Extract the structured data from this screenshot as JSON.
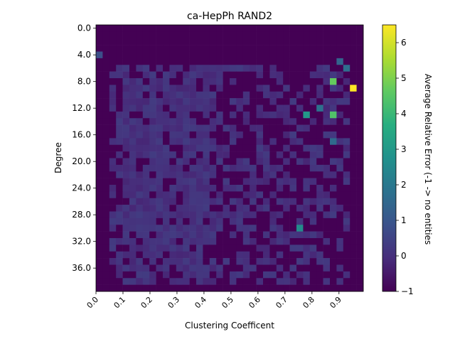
{
  "chart_data": {
    "type": "heatmap",
    "title": "ca-HepPh RAND2",
    "xlabel": "Clustering Coefficent",
    "ylabel": "Degree",
    "x_range": [
      0.0,
      1.0
    ],
    "y_range": [
      0,
      40
    ],
    "x_ticks": [
      0.0,
      0.1,
      0.2,
      0.3,
      0.4,
      0.5,
      0.6,
      0.7,
      0.8,
      0.9
    ],
    "x_tick_labels": [
      "0.0",
      "0.1",
      "0.2",
      "0.3",
      "0.4",
      "0.5",
      "0.6",
      "0.7",
      "0.8",
      "0.9"
    ],
    "y_ticks": [
      0,
      4,
      8,
      12,
      16,
      20,
      24,
      28,
      32,
      36
    ],
    "y_tick_labels": [
      "0.0",
      "4.0",
      "8.0",
      "12.0",
      "16.0",
      "20.0",
      "24.0",
      "28.0",
      "32.0",
      "36.0"
    ],
    "grid": false,
    "colormap": "viridis",
    "colorbar": {
      "label": "Average Relative Error (-1 -> no entities",
      "range": [
        -1,
        6.5
      ],
      "ticks": [
        -1,
        0,
        1,
        2,
        3,
        4,
        5,
        6
      ],
      "tick_labels": [
        "−1",
        "0",
        "1",
        "2",
        "3",
        "4",
        "5",
        "6"
      ]
    },
    "empty_value": -1,
    "highlight_cells": [
      {
        "clustering": 0.96,
        "degree": 9,
        "value": 6.5
      },
      {
        "clustering": 0.88,
        "degree": 8,
        "value": 4.7
      },
      {
        "clustering": 0.88,
        "degree": 13,
        "value": 4.4
      },
      {
        "clustering": 0.78,
        "degree": 13,
        "value": 3.0
      },
      {
        "clustering": 0.76,
        "degree": 30,
        "value": 2.6
      },
      {
        "clustering": 0.88,
        "degree": 17,
        "value": 1.6
      },
      {
        "clustering": 0.83,
        "degree": 12,
        "value": 1.8
      },
      {
        "clustering": 0.93,
        "degree": 6,
        "value": 1.7
      },
      {
        "clustering": 0.91,
        "degree": 5,
        "value": 1.4
      },
      {
        "clustering": 0.02,
        "degree": 4,
        "value": 0.8
      }
    ]
  }
}
